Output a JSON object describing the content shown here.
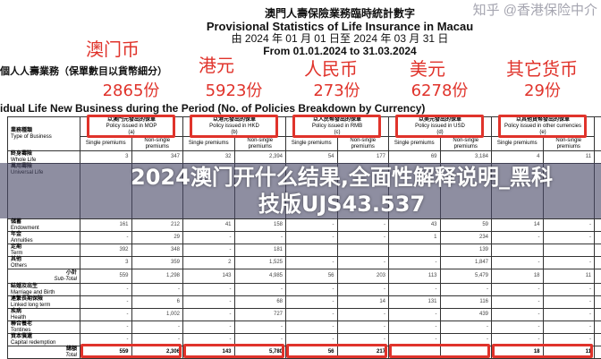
{
  "doc": {
    "title_zh": "澳門人壽保險業務臨時統計數字",
    "title_en": "Provisional Statistics of Life Insurance in Macau",
    "period_zh": "由 2024 年 01 月 01 日至 2024 年 03 月 31 日",
    "period_en": "From 01.01.2024 to 31.03.2024",
    "section_zh": "個人人壽業務（保單數目以貨幣細分）",
    "section_en": "idual Life New Business during the Period (No. of Policies Breakdown by Currency)"
  },
  "table": {
    "type_header": {
      "zh": "業務種類",
      "en": "Type of Business"
    },
    "currencies": [
      {
        "zh": "以澳門元發出的保單",
        "en": "Policy issued in MOP",
        "code": "(a)"
      },
      {
        "zh": "以港元發出的保單",
        "en": "Policy issued in HKD",
        "code": "(b)"
      },
      {
        "zh": "以人民幣發出的保單",
        "en": "Policy issued in RMB",
        "code": "(c)"
      },
      {
        "zh": "以美元發出的保單",
        "en": "Policy issued in USD",
        "code": "(d)"
      },
      {
        "zh": "以其他貨幣發出的保單",
        "en": "Policy issued in other currencies",
        "code": "(e)"
      }
    ],
    "single": "Single premiums",
    "nonsingle": "Non-single premiums",
    "rows": [
      {
        "zh": "終身壽險",
        "en": "Whole Life",
        "v": [
          "3",
          "347",
          "32",
          "2,394",
          "54",
          "177",
          "69",
          "3,184",
          "4",
          "11"
        ]
      },
      {
        "zh": "萬用壽險",
        "en": "Universal Life",
        "v": [
          "",
          "",
          "",
          "",
          "",
          "",
          "",
          "",
          "",
          ""
        ]
      },
      {
        "zh": "儲蓄",
        "en": "Endowment",
        "v": [
          "161",
          "212",
          "41",
          "158",
          "-",
          "-",
          "43",
          "59",
          "14",
          "-"
        ]
      },
      {
        "zh": "年金",
        "en": "Annuities",
        "v": [
          "-",
          "29",
          "-",
          "-",
          "-",
          "-",
          "1",
          "234",
          "-",
          "-"
        ]
      },
      {
        "zh": "定期",
        "en": "Term",
        "v": [
          "392",
          "348",
          "-",
          "181",
          "",
          "",
          "",
          "139",
          "",
          ""
        ]
      },
      {
        "zh": "其他",
        "en": "Others",
        "v": [
          "3",
          "359",
          "2",
          "1,525",
          "-",
          "-",
          "-",
          "1,847",
          "-",
          "-"
        ]
      },
      {
        "zh": "小計",
        "en": "Sub-Total",
        "v": [
          "559",
          "1,298",
          "143",
          "4,985",
          "56",
          "203",
          "113",
          "5,479",
          "18",
          "11"
        ]
      },
      {
        "zh": "結婚及出生",
        "en": "Marriage and Birth",
        "v": [
          "-",
          "-",
          "-",
          "-",
          "-",
          "-",
          "-",
          "-",
          "-",
          "-"
        ]
      },
      {
        "zh": "連繫長期保險",
        "en": "Linked long term",
        "v": [
          "-",
          "6",
          "-",
          "68",
          "-",
          "14",
          "131",
          "116",
          "-",
          "-"
        ]
      },
      {
        "zh": "疾病",
        "en": "Health",
        "v": [
          "-",
          "1,002",
          "-",
          "727",
          "-",
          "-",
          "-",
          "439",
          "-",
          "-"
        ]
      },
      {
        "zh": "聯合養老",
        "en": "Tontines",
        "v": [
          "-",
          "-",
          "-",
          "-",
          "-",
          "-",
          "-",
          "-",
          "-",
          "-"
        ]
      },
      {
        "zh": "資本償還",
        "en": "Capital redemption",
        "v": [
          "-",
          "-",
          "-",
          "-",
          "-",
          "-",
          "-",
          "-",
          "-",
          "-"
        ]
      },
      {
        "zh": "總額",
        "en": "Total",
        "v": [
          "559",
          "2,306",
          "143",
          "5,780",
          "56",
          "217",
          "",
          "",
          "18",
          "11"
        ]
      }
    ]
  },
  "annotations": {
    "labels": [
      "澳门币",
      "港元",
      "人民币",
      "美元",
      "其它货币"
    ],
    "counts": [
      "2865份",
      "5923份",
      "273份",
      "6278份",
      "29份"
    ],
    "color": "#e0332b"
  },
  "overlay": {
    "line1": "2024澳门开什么结果,全面性解释说明_黑科",
    "line2": "技版UJS43.537"
  },
  "watermark": "知乎 @香港保险中介"
}
